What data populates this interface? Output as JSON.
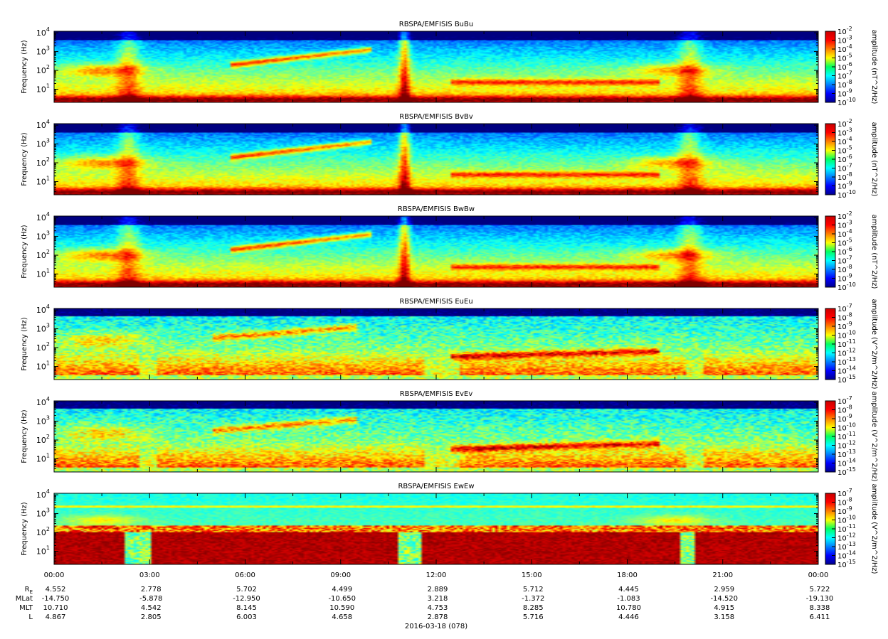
{
  "chart_data": [
    {
      "type": "heatmap",
      "title": "RBSPA/EMFISIS  BuBu",
      "ylabel": "Frequency (Hz)",
      "yscale": "log",
      "ylim": [
        2,
        12000
      ],
      "yticks": [
        {
          "base": "10",
          "exp": "1",
          "value": 10
        },
        {
          "base": "10",
          "exp": "2",
          "value": 100
        },
        {
          "base": "10",
          "exp": "3",
          "value": 1000
        },
        {
          "base": "10",
          "exp": "4",
          "value": 10000
        }
      ],
      "colorbar": {
        "label": "amplitude (nT^2/Hz)",
        "min_exp": -10,
        "max_exp": -2,
        "ticks": [
          {
            "base": "10",
            "exp": "-2"
          },
          {
            "base": "10",
            "exp": "-3"
          },
          {
            "base": "10",
            "exp": "-4"
          },
          {
            "base": "10",
            "exp": "-5"
          },
          {
            "base": "10",
            "exp": "-6"
          },
          {
            "base": "10",
            "exp": "-7"
          },
          {
            "base": "10",
            "exp": "-8"
          },
          {
            "base": "10",
            "exp": "-9"
          },
          {
            "base": "10",
            "exp": "-10"
          }
        ]
      },
      "kind": "B"
    },
    {
      "type": "heatmap",
      "title": "RBSPA/EMFISIS  BvBv",
      "ylabel": "Frequency (Hz)",
      "yscale": "log",
      "ylim": [
        2,
        12000
      ],
      "yticks": [
        {
          "base": "10",
          "exp": "1",
          "value": 10
        },
        {
          "base": "10",
          "exp": "2",
          "value": 100
        },
        {
          "base": "10",
          "exp": "3",
          "value": 1000
        },
        {
          "base": "10",
          "exp": "4",
          "value": 10000
        }
      ],
      "colorbar": {
        "label": "amplitude (nT^2/Hz)",
        "min_exp": -10,
        "max_exp": -2,
        "ticks": [
          {
            "base": "10",
            "exp": "-2"
          },
          {
            "base": "10",
            "exp": "-3"
          },
          {
            "base": "10",
            "exp": "-4"
          },
          {
            "base": "10",
            "exp": "-5"
          },
          {
            "base": "10",
            "exp": "-6"
          },
          {
            "base": "10",
            "exp": "-7"
          },
          {
            "base": "10",
            "exp": "-8"
          },
          {
            "base": "10",
            "exp": "-9"
          },
          {
            "base": "10",
            "exp": "-10"
          }
        ]
      },
      "kind": "B"
    },
    {
      "type": "heatmap",
      "title": "RBSPA/EMFISIS  BwBw",
      "ylabel": "Frequency (Hz)",
      "yscale": "log",
      "ylim": [
        2,
        12000
      ],
      "yticks": [
        {
          "base": "10",
          "exp": "1",
          "value": 10
        },
        {
          "base": "10",
          "exp": "2",
          "value": 100
        },
        {
          "base": "10",
          "exp": "3",
          "value": 1000
        },
        {
          "base": "10",
          "exp": "4",
          "value": 10000
        }
      ],
      "colorbar": {
        "label": "amplitude (nT^2/Hz)",
        "min_exp": -10,
        "max_exp": -2,
        "ticks": [
          {
            "base": "10",
            "exp": "-2"
          },
          {
            "base": "10",
            "exp": "-3"
          },
          {
            "base": "10",
            "exp": "-4"
          },
          {
            "base": "10",
            "exp": "-5"
          },
          {
            "base": "10",
            "exp": "-6"
          },
          {
            "base": "10",
            "exp": "-7"
          },
          {
            "base": "10",
            "exp": "-8"
          },
          {
            "base": "10",
            "exp": "-9"
          },
          {
            "base": "10",
            "exp": "-10"
          }
        ]
      },
      "kind": "B"
    },
    {
      "type": "heatmap",
      "title": "RBSPA/EMFISIS  EuEu",
      "ylabel": "Frequency (Hz)",
      "yscale": "log",
      "ylim": [
        2,
        12000
      ],
      "yticks": [
        {
          "base": "10",
          "exp": "1",
          "value": 10
        },
        {
          "base": "10",
          "exp": "2",
          "value": 100
        },
        {
          "base": "10",
          "exp": "3",
          "value": 1000
        },
        {
          "base": "10",
          "exp": "4",
          "value": 10000
        }
      ],
      "colorbar": {
        "label": "amplitude (V^2/m^2/Hz)",
        "min_exp": -15,
        "max_exp": -7,
        "ticks": [
          {
            "base": "10",
            "exp": "-7"
          },
          {
            "base": "10",
            "exp": "-8"
          },
          {
            "base": "10",
            "exp": "-9"
          },
          {
            "base": "10",
            "exp": "-10"
          },
          {
            "base": "10",
            "exp": "-11"
          },
          {
            "base": "10",
            "exp": "-12"
          },
          {
            "base": "10",
            "exp": "-13"
          },
          {
            "base": "10",
            "exp": "-14"
          },
          {
            "base": "10",
            "exp": "-15"
          }
        ]
      },
      "kind": "E"
    },
    {
      "type": "heatmap",
      "title": "RBSPA/EMFISIS  EvEv",
      "ylabel": "Frequency (Hz)",
      "yscale": "log",
      "ylim": [
        2,
        12000
      ],
      "yticks": [
        {
          "base": "10",
          "exp": "1",
          "value": 10
        },
        {
          "base": "10",
          "exp": "2",
          "value": 100
        },
        {
          "base": "10",
          "exp": "3",
          "value": 1000
        },
        {
          "base": "10",
          "exp": "4",
          "value": 10000
        }
      ],
      "colorbar": {
        "label": "amplitude (V^2/m^2/Hz)",
        "min_exp": -15,
        "max_exp": -7,
        "ticks": [
          {
            "base": "10",
            "exp": "-7"
          },
          {
            "base": "10",
            "exp": "-8"
          },
          {
            "base": "10",
            "exp": "-9"
          },
          {
            "base": "10",
            "exp": "-10"
          },
          {
            "base": "10",
            "exp": "-11"
          },
          {
            "base": "10",
            "exp": "-12"
          },
          {
            "base": "10",
            "exp": "-13"
          },
          {
            "base": "10",
            "exp": "-14"
          },
          {
            "base": "10",
            "exp": "-15"
          }
        ]
      },
      "kind": "E"
    },
    {
      "type": "heatmap",
      "title": "RBSPA/EMFISIS  EwEw",
      "ylabel": "Frequency (Hz)",
      "yscale": "log",
      "ylim": [
        2,
        12000
      ],
      "yticks": [
        {
          "base": "10",
          "exp": "1",
          "value": 10
        },
        {
          "base": "10",
          "exp": "2",
          "value": 100
        },
        {
          "base": "10",
          "exp": "3",
          "value": 1000
        },
        {
          "base": "10",
          "exp": "4",
          "value": 10000
        }
      ],
      "colorbar": {
        "label": "amplitude (V^2/m^2/Hz)",
        "min_exp": -15,
        "max_exp": -7,
        "ticks": [
          {
            "base": "10",
            "exp": "-7"
          },
          {
            "base": "10",
            "exp": "-8"
          },
          {
            "base": "10",
            "exp": "-9"
          },
          {
            "base": "10",
            "exp": "-10"
          },
          {
            "base": "10",
            "exp": "-11"
          },
          {
            "base": "10",
            "exp": "-12"
          },
          {
            "base": "10",
            "exp": "-13"
          },
          {
            "base": "10",
            "exp": "-14"
          },
          {
            "base": "10",
            "exp": "-15"
          }
        ]
      },
      "kind": "Ew"
    }
  ],
  "time_axis": {
    "ticks": [
      "00:00",
      "03:00",
      "06:00",
      "09:00",
      "12:00",
      "15:00",
      "18:00",
      "21:00",
      "00:00"
    ],
    "date_label": "2016-03-18 (078)"
  },
  "ephemeris": {
    "rows": [
      {
        "label_main": "R",
        "label_sub": "E",
        "values": [
          "4.552",
          "2.778",
          "5.702",
          "4.499",
          "2.889",
          "5.712",
          "4.445",
          "2.959",
          "5.722"
        ]
      },
      {
        "label_main": "MLat",
        "label_sub": "",
        "values": [
          "-14.750",
          "-5.878",
          "-12.950",
          "-10.650",
          "3.218",
          "-1.372",
          "-1.083",
          "-14.520",
          "-19.130"
        ]
      },
      {
        "label_main": "MLT",
        "label_sub": "",
        "values": [
          "10.710",
          "4.542",
          "8.145",
          "10.590",
          "4.753",
          "8.285",
          "10.780",
          "4.915",
          "8.338"
        ]
      },
      {
        "label_main": "L",
        "label_sub": "",
        "values": [
          "4.867",
          "2.805",
          "6.003",
          "4.658",
          "2.878",
          "5.716",
          "4.446",
          "3.158",
          "6.411"
        ]
      }
    ]
  }
}
